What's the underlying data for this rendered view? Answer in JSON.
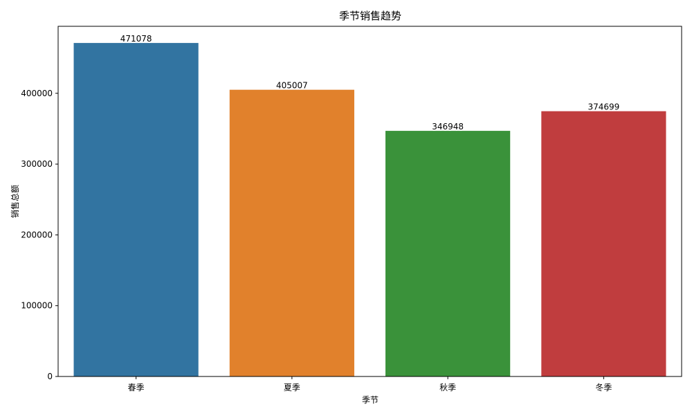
{
  "chart_data": {
    "type": "bar",
    "title": "季节销售趋势",
    "xlabel": "季节",
    "ylabel": "销售总额",
    "categories": [
      "春季",
      "夏季",
      "秋季",
      "冬季"
    ],
    "values": [
      471078,
      405007,
      346948,
      374699
    ],
    "data_labels": [
      "471078",
      "405007",
      "346948",
      "374699"
    ],
    "colors": [
      "#3274a1",
      "#e1812c",
      "#3a923a",
      "#c03d3e"
    ],
    "ylim": [
      0,
      494632
    ],
    "yticks": [
      0,
      100000,
      200000,
      300000,
      400000
    ],
    "ytick_labels": [
      "0",
      "100000",
      "200000",
      "300000",
      "400000"
    ],
    "grid": false,
    "legend": "none"
  }
}
